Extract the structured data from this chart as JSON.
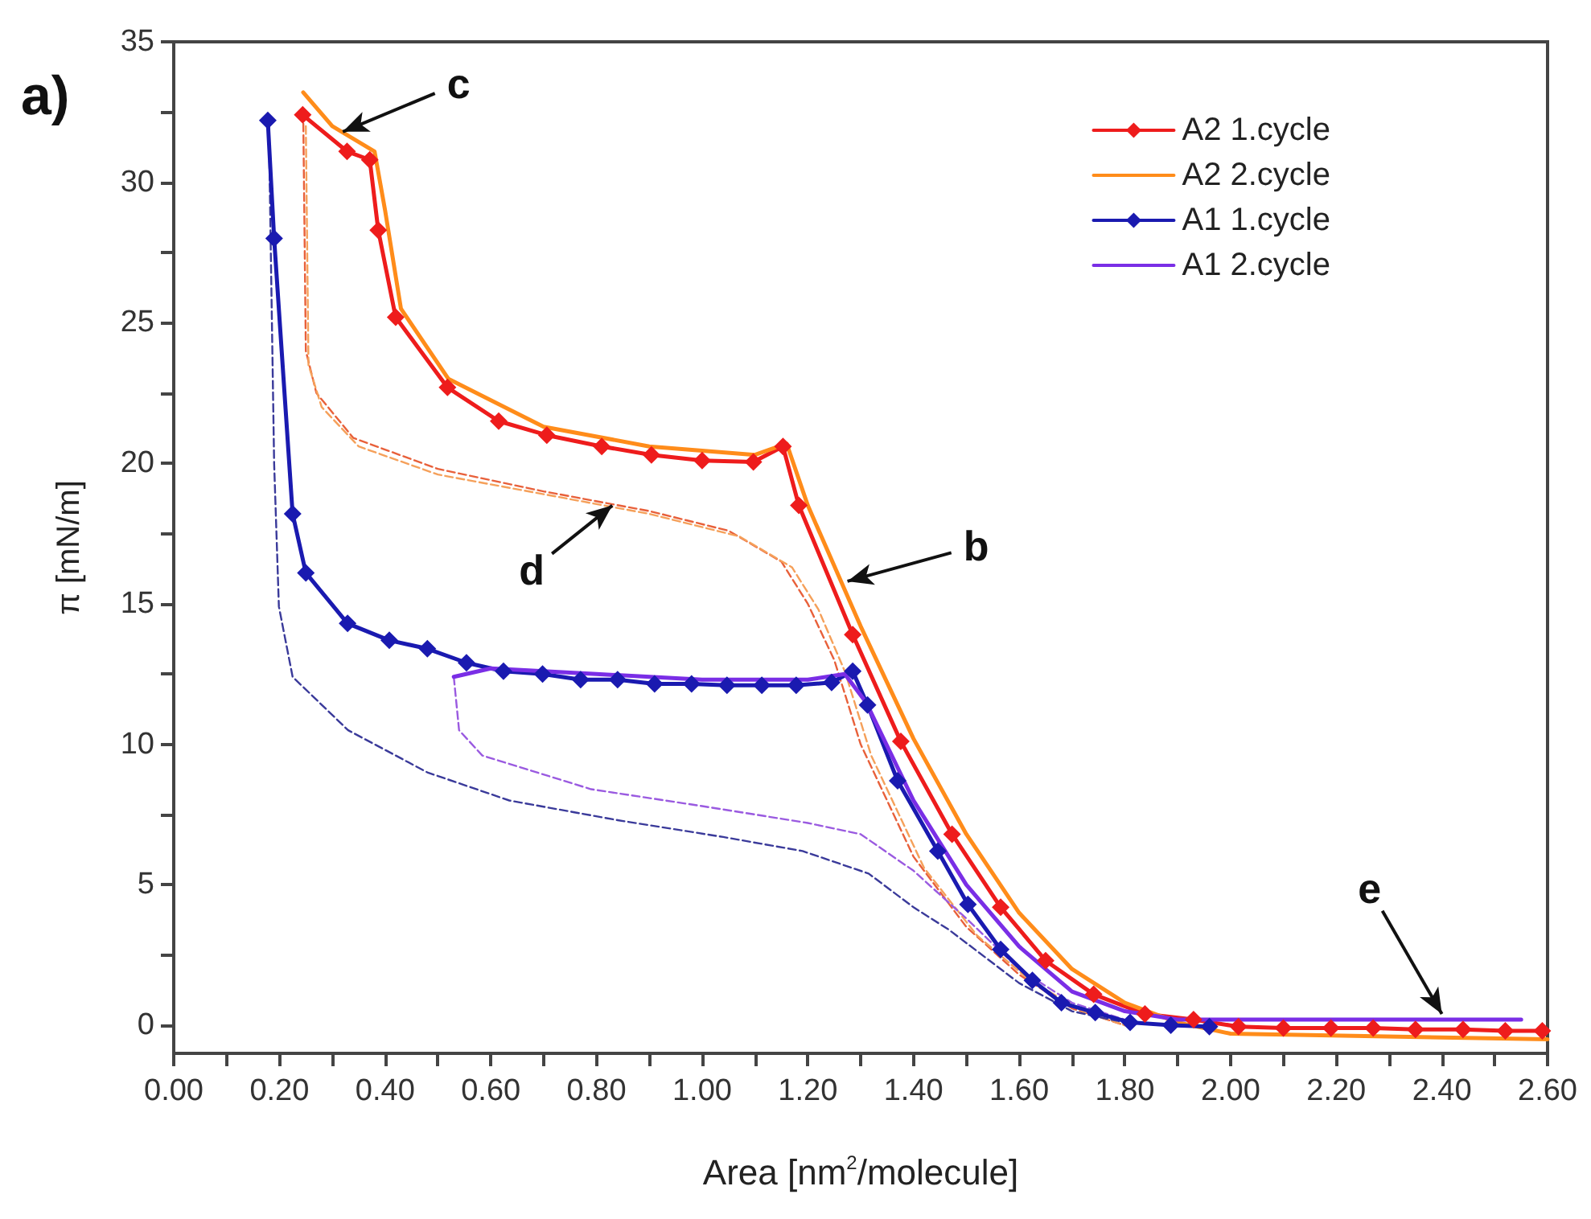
{
  "chart_data": {
    "type": "line",
    "title": "a)",
    "xlabel": "Area [nm$^{2}$/molecule]",
    "ylabel": "π [mN/m]",
    "xlim": [
      0,
      2.6
    ],
    "ylim": [
      -1,
      35
    ],
    "xticks": [
      {
        "value": 0,
        "label": "0.00"
      },
      {
        "value": 0.1,
        "label": null
      },
      {
        "value": 0.2,
        "label": "0.20"
      },
      {
        "value": 0.3,
        "label": null
      },
      {
        "value": 0.4,
        "label": "0.40"
      },
      {
        "value": 0.5,
        "label": null
      },
      {
        "value": 0.6,
        "label": "0.60"
      },
      {
        "value": 0.7,
        "label": null
      },
      {
        "value": 0.8,
        "label": "0.80"
      },
      {
        "value": 0.9,
        "label": null
      },
      {
        "value": 1.0,
        "label": "1.00"
      },
      {
        "value": 1.1,
        "label": null
      },
      {
        "value": 1.2,
        "label": "1.20"
      },
      {
        "value": 1.3,
        "label": null
      },
      {
        "value": 1.4,
        "label": "1.40"
      },
      {
        "value": 1.5,
        "label": null
      },
      {
        "value": 1.6,
        "label": "1.60"
      },
      {
        "value": 1.7,
        "label": null
      },
      {
        "value": 1.8,
        "label": "1.80"
      },
      {
        "value": 1.9,
        "label": null
      },
      {
        "value": 2.0,
        "label": "2.00"
      },
      {
        "value": 2.1,
        "label": null
      },
      {
        "value": 2.2,
        "label": "2.20"
      },
      {
        "value": 2.3,
        "label": null
      },
      {
        "value": 2.4,
        "label": "2.40"
      },
      {
        "value": 2.5,
        "label": null
      },
      {
        "value": 2.6,
        "label": "2.60"
      }
    ],
    "yticks": [
      0,
      {
        "value": 2.5,
        "label": null
      },
      5,
      {
        "value": 7.5,
        "label": null
      },
      10,
      {
        "value": 12.5,
        "label": null
      },
      15,
      {
        "value": 17.5,
        "label": null
      },
      20,
      {
        "value": 22.5,
        "label": null
      },
      25,
      {
        "value": 27.5,
        "label": null
      },
      30,
      {
        "value": 32.5,
        "label": null
      },
      35
    ],
    "grid": false,
    "legend": "top right",
    "series": [
      {
        "name": "A2 1.cycle",
        "color": "#ee1c1c",
        "marker": "diamond",
        "line_style": "solid",
        "x": [
          0.244,
          0.328,
          0.371,
          0.387,
          0.42,
          0.518,
          0.615,
          0.706,
          0.81,
          0.904,
          1.0,
          1.097,
          1.153,
          1.183,
          1.285,
          1.376,
          1.473,
          1.565,
          1.65,
          1.741,
          1.838,
          1.93,
          2.015,
          2.1,
          2.19,
          2.27,
          2.35,
          2.44,
          2.52,
          2.59
        ],
        "values": [
          32.4,
          31.1,
          30.8,
          28.3,
          25.2,
          22.7,
          21.5,
          21.0,
          20.6,
          20.3,
          20.1,
          20.05,
          20.6,
          18.5,
          13.9,
          10.1,
          6.8,
          4.2,
          2.3,
          1.1,
          0.4,
          0.2,
          -0.05,
          -0.1,
          -0.1,
          -0.1,
          -0.15,
          -0.15,
          -0.2,
          -0.2
        ]
      },
      {
        "name": "A2 2.cycle",
        "color": "#ff8c1a",
        "marker": "none",
        "line_style": "solid",
        "x": [
          0.245,
          0.3,
          0.38,
          0.4,
          0.43,
          0.52,
          0.7,
          0.9,
          1.1,
          1.16,
          1.2,
          1.3,
          1.4,
          1.5,
          1.6,
          1.7,
          1.8,
          1.9,
          2.0,
          2.6
        ],
        "values": [
          33.2,
          32.0,
          31.1,
          29.0,
          25.5,
          23.0,
          21.3,
          20.6,
          20.3,
          20.7,
          18.5,
          14.2,
          10.2,
          6.8,
          4.0,
          2.0,
          0.8,
          0.1,
          -0.3,
          -0.5
        ]
      },
      {
        "name": "A1 1.cycle",
        "color": "#1a1ab0",
        "marker": "diamond",
        "line_style": "solid",
        "x": [
          0.178,
          0.19,
          0.225,
          0.25,
          0.329,
          0.408,
          0.48,
          0.554,
          0.624,
          0.698,
          0.77,
          0.84,
          0.91,
          0.98,
          1.047,
          1.113,
          1.178,
          1.245,
          1.285,
          1.313,
          1.37,
          1.446,
          1.503,
          1.565,
          1.625,
          1.68,
          1.744,
          1.81,
          1.887,
          1.96
        ],
        "values": [
          32.2,
          28.0,
          18.2,
          16.1,
          14.3,
          13.7,
          13.4,
          12.9,
          12.6,
          12.5,
          12.3,
          12.3,
          12.15,
          12.15,
          12.1,
          12.1,
          12.1,
          12.2,
          12.6,
          11.4,
          8.7,
          6.2,
          4.3,
          2.7,
          1.6,
          0.8,
          0.45,
          0.1,
          0.0,
          -0.05
        ]
      },
      {
        "name": "A1 2.cycle",
        "color": "#7a2ee6",
        "marker": "none",
        "line_style": "solid",
        "x": [
          0.53,
          0.6,
          0.8,
          1.0,
          1.2,
          1.27,
          1.31,
          1.4,
          1.5,
          1.6,
          1.7,
          1.8,
          1.9,
          2.0,
          2.55
        ],
        "values": [
          12.4,
          12.7,
          12.5,
          12.3,
          12.3,
          12.5,
          11.5,
          8.0,
          5.0,
          2.8,
          1.2,
          0.5,
          0.2,
          0.2,
          0.2
        ]
      },
      {
        "color": "#e8603a",
        "marker": "none",
        "line_style": "dashed",
        "x": [
          0.245,
          0.25,
          0.27,
          0.34,
          0.5,
          0.7,
          0.9,
          1.05,
          1.15,
          1.2,
          1.25,
          1.3,
          1.4,
          1.5,
          1.6,
          1.7,
          1.8
        ],
        "values": [
          32.5,
          24.0,
          22.5,
          20.9,
          19.8,
          19.0,
          18.3,
          17.6,
          16.5,
          15.0,
          13.0,
          10.0,
          6.0,
          3.5,
          1.8,
          0.6,
          0.0
        ]
      },
      {
        "color": "#f5a05a",
        "marker": "none",
        "line_style": "dashed",
        "x": [
          0.25,
          0.255,
          0.28,
          0.35,
          0.5,
          0.7,
          0.9,
          1.07,
          1.17,
          1.22,
          1.27,
          1.32,
          1.42,
          1.52,
          1.62,
          1.72,
          1.8
        ],
        "values": [
          32.0,
          23.5,
          22.0,
          20.6,
          19.6,
          18.9,
          18.2,
          17.4,
          16.3,
          14.8,
          12.6,
          9.6,
          5.6,
          3.2,
          1.6,
          0.5,
          0.0
        ]
      },
      {
        "color": "#3a3a9a",
        "marker": "none",
        "line_style": "dashed",
        "x": [
          0.18,
          0.19,
          0.199,
          0.225,
          0.33,
          0.48,
          0.635,
          0.84,
          1.04,
          1.19,
          1.315,
          1.4,
          1.467,
          1.6,
          1.7,
          1.8
        ],
        "values": [
          32.0,
          20.0,
          14.9,
          12.4,
          10.5,
          9.0,
          8.0,
          7.3,
          6.7,
          6.2,
          5.4,
          4.2,
          3.4,
          1.5,
          0.5,
          0.1
        ]
      },
      {
        "color": "#9a5ae0",
        "marker": "none",
        "line_style": "dashed",
        "x": [
          0.53,
          0.54,
          0.584,
          0.79,
          1.0,
          1.2,
          1.3,
          1.4,
          1.5,
          1.6,
          1.7,
          1.8
        ],
        "values": [
          12.4,
          10.5,
          9.6,
          8.4,
          7.8,
          7.2,
          6.8,
          5.5,
          3.8,
          2.0,
          0.8,
          0.2
        ]
      }
    ],
    "annotations": [
      {
        "text": "c",
        "x": 0.32,
        "y": 31.8
      },
      {
        "text": "d",
        "x": 0.83,
        "y": 18.5
      },
      {
        "text": "b",
        "x": 1.275,
        "y": 15.8
      },
      {
        "text": "e",
        "x": 2.4,
        "y": 0.4
      }
    ]
  }
}
